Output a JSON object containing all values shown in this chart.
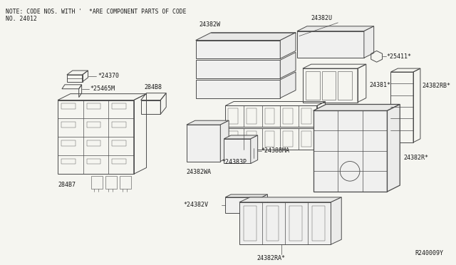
{
  "bg_color": "#f5f5f0",
  "line_color": "#4a4a4a",
  "text_color": "#1a1a1a",
  "note_line1": "NOTE: CODE NOS. WITH '  *ARE COMPONENT PARTS OF CODE",
  "note_line2": "NO. 24012",
  "ref_code": "R240009Y",
  "fig_width": 6.4,
  "fig_height": 3.72,
  "dpi": 100
}
